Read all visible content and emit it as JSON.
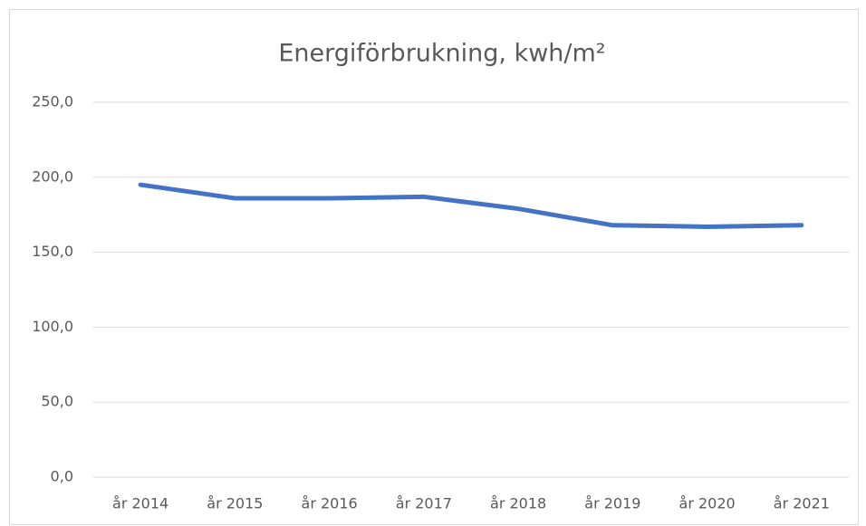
{
  "chart_data": {
    "type": "line",
    "title": "Energiförbrukning, kwh/m²",
    "categories": [
      "år 2014",
      "år 2015",
      "år 2016",
      "år 2017",
      "år 2018",
      "år 2019",
      "år 2020",
      "år 2021"
    ],
    "series": [
      {
        "name": "Energiförbrukning",
        "color": "#4472c4",
        "values": [
          195,
          186,
          186,
          187,
          179,
          168,
          167,
          168
        ]
      }
    ],
    "ylim": [
      0,
      250
    ],
    "yticks": [
      {
        "value": 0,
        "label": "0,0"
      },
      {
        "value": 50,
        "label": "50,0"
      },
      {
        "value": 100,
        "label": "100,0"
      },
      {
        "value": 150,
        "label": "150,0"
      },
      {
        "value": 200,
        "label": "200,0"
      },
      {
        "value": 250,
        "label": "250,0"
      }
    ],
    "grid": true
  }
}
